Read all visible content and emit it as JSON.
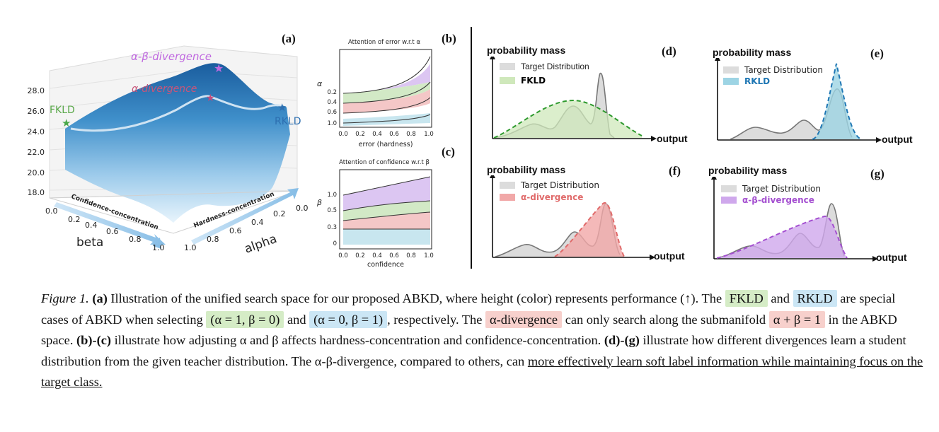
{
  "panel_a": {
    "label": "(a)",
    "z_ticks": [
      "28.0",
      "26.0",
      "24.0",
      "22.0",
      "20.0",
      "18.0"
    ],
    "beta_ticks": [
      "0.0",
      "0.2",
      "0.4",
      "0.6",
      "0.8",
      "1.0"
    ],
    "alpha_ticks": [
      "1.0",
      "0.8",
      "0.6",
      "0.4",
      "0.2",
      "0.0"
    ],
    "beta_label": "beta",
    "alpha_label": "alpha",
    "confidence_arrow": "Confidence-concentration",
    "hardness_arrow": "Hardness-concentration",
    "points": {
      "fkld": "FKLD",
      "rkld": "RKLD",
      "alpha_div": "α-divergence",
      "ab_div": "α-β-divergence"
    }
  },
  "panel_b": {
    "label": "(b)",
    "title": "Attention of error w.r.t α",
    "ylabel": "α",
    "xlabel": "error (hardness)",
    "y_ticks": [
      "0.2",
      "0.4",
      "0.6",
      "1.0"
    ],
    "x_ticks": [
      "0.0",
      "0.2",
      "0.4",
      "0.6",
      "0.8",
      "1.0"
    ]
  },
  "panel_c": {
    "label": "(c)",
    "title": "Attention of confidence w.r.t β",
    "ylabel": "β",
    "xlabel": "confidence",
    "y_ticks": [
      "1.0",
      "0.5",
      "0.3",
      "0"
    ],
    "x_ticks": [
      "0.0",
      "0.2",
      "0.4",
      "0.6",
      "0.8",
      "1.0"
    ]
  },
  "dist_panels": {
    "ylabel": "probability mass",
    "xlabel": "output",
    "target_label": "Target Distribution",
    "d": {
      "label": "(d)",
      "method": "FKLD",
      "color": "#2e9a2e"
    },
    "e": {
      "label": "(e)",
      "method": "RKLD",
      "color": "#1f77b4"
    },
    "f": {
      "label": "(f)",
      "method": "α-divergence",
      "color": "#e06a6a"
    },
    "g": {
      "label": "(g)",
      "method": "α-β-divergence",
      "color": "#a44fd0"
    }
  },
  "colors": {
    "green_hl": "#d5ecc6",
    "blue_hl": "#cbe6f5",
    "red_hl": "#f7d0cc"
  },
  "caption": {
    "fig": "Figure 1.",
    "p_a": "(a)",
    "t1": " Illustration of the unified search space for our proposed ABKD, where height (color) represents performance (↑). The ",
    "fkld": "FKLD",
    "t2": " and ",
    "rkld": "RKLD",
    "t3": " are special cases of ABKD when selecting ",
    "eq1": "(α = 1, β = 0)",
    "t4": " and ",
    "eq2": "(α = 0, β = 1)",
    "t5": ", respectively. The ",
    "alphadiv": "α-divergence",
    "t6": " can only search along the submanifold ",
    "eq3": "α + β = 1",
    "t7": " in the ABKD space. ",
    "p_bc": "(b)-(c)",
    "t8": " illustrate how adjusting α and β affects hardness-concentration and confidence-concentration. ",
    "p_dg": "(d)-(g)",
    "t9": " illustrate how different divergences learn a student distribution from the given teacher distribution. The α-β-divergence, compared to others, can ",
    "underline": "more effectively learn soft label information while maintaining focus on the target class."
  }
}
